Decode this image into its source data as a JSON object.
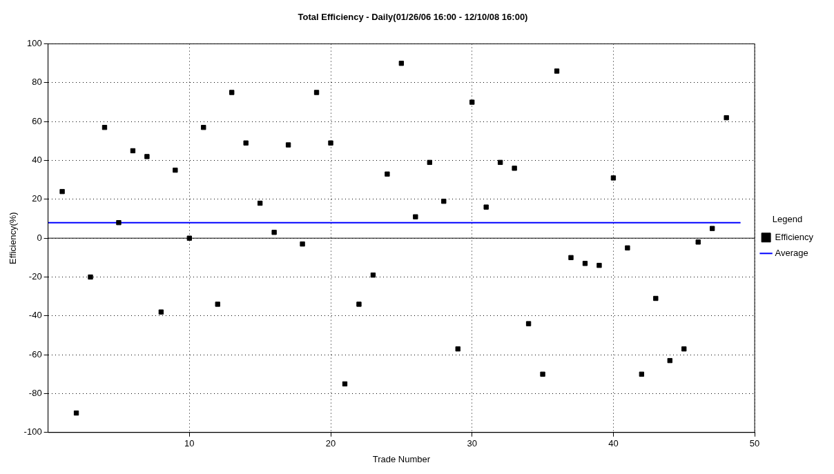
{
  "chart_data": {
    "type": "scatter",
    "title": "Total Efficiency - Daily(01/26/06 16:00 - 12/10/08 16:00)",
    "xlabel": "Trade Number",
    "ylabel": "Efficiency(%)",
    "legend_title": "Legend",
    "legend": "right",
    "grid": true,
    "xlim": [
      0,
      50
    ],
    "xticks": [
      10,
      20,
      30,
      40,
      50
    ],
    "ylim": [
      -100,
      100
    ],
    "yticks": [
      -100,
      -80,
      -60,
      -40,
      -20,
      0,
      20,
      40,
      60,
      80,
      100
    ],
    "series": [
      {
        "name": "Efficiency",
        "marker": "square",
        "color": "#000000",
        "x": [
          1,
          2,
          3,
          4,
          5,
          6,
          7,
          8,
          9,
          10,
          11,
          12,
          13,
          14,
          15,
          16,
          17,
          18,
          19,
          20,
          21,
          22,
          23,
          24,
          25,
          26,
          27,
          28,
          29,
          30,
          31,
          32,
          33,
          34,
          35,
          36,
          37,
          38,
          39,
          40,
          41,
          42,
          43,
          44,
          45,
          46,
          47,
          48
        ],
        "values": [
          24,
          -90,
          -20,
          57,
          8,
          45,
          42,
          -38,
          35,
          0,
          57,
          -34,
          75,
          49,
          18,
          3,
          48,
          -3,
          75,
          49,
          -75,
          -34,
          -19,
          33,
          90,
          11,
          39,
          19,
          -57,
          70,
          16,
          39,
          36,
          -44,
          -70,
          86,
          -10,
          -13,
          -14,
          31,
          -5,
          -70,
          -31,
          -63,
          -57,
          -2,
          5,
          62
        ]
      },
      {
        "name": "Average",
        "type": "line",
        "color": "#0000ff",
        "x": [
          0,
          49
        ],
        "values": [
          8,
          8
        ]
      }
    ]
  }
}
